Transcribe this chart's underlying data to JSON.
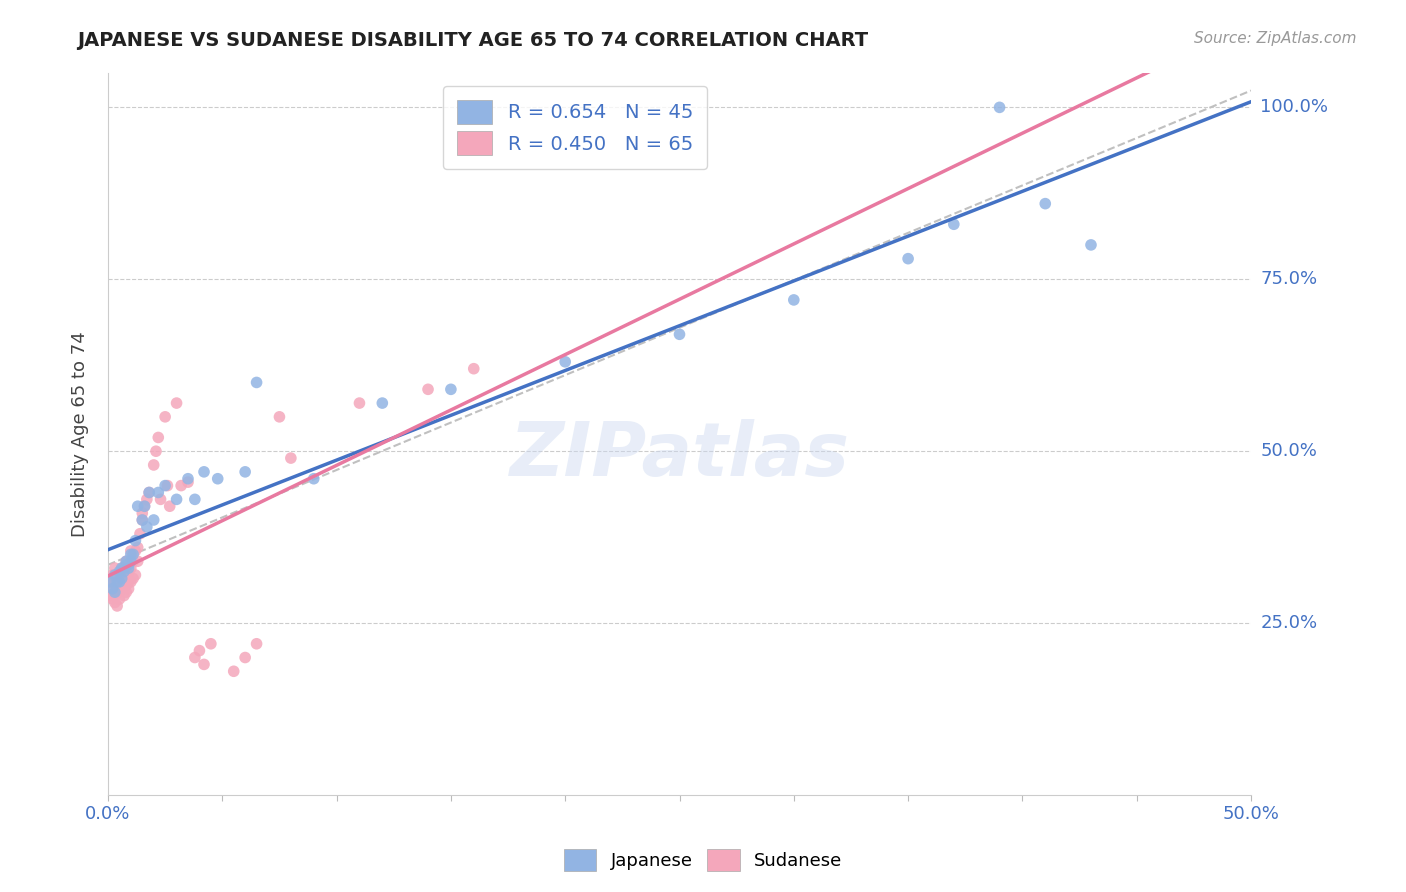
{
  "title": "JAPANESE VS SUDANESE DISABILITY AGE 65 TO 74 CORRELATION CHART",
  "source_text": "Source: ZipAtlas.com",
  "ylabel": "Disability Age 65 to 74",
  "xlim": [
    0.0,
    0.5
  ],
  "ylim": [
    0.0,
    1.05
  ],
  "xticks": [
    0.0,
    0.05,
    0.1,
    0.15,
    0.2,
    0.25,
    0.3,
    0.35,
    0.4,
    0.45,
    0.5
  ],
  "xticklabels": [
    "0.0%",
    "",
    "",
    "",
    "",
    "",
    "",
    "",
    "",
    "",
    "50.0%"
  ],
  "ytick_positions": [
    0.25,
    0.5,
    0.75,
    1.0
  ],
  "yticklabels": [
    "25.0%",
    "50.0%",
    "75.0%",
    "100.0%"
  ],
  "japanese_color": "#92b4e3",
  "sudanese_color": "#f4a7bb",
  "japanese_line_color": "#4472c4",
  "sudanese_line_color": "#e879a0",
  "regression_line_color": "#c0c0c0",
  "watermark": "ZIPatlas",
  "japanese_x": [
    0.001,
    0.002,
    0.003,
    0.003,
    0.004,
    0.005,
    0.005,
    0.006,
    0.006,
    0.007,
    0.007,
    0.008,
    0.008,
    0.009,
    0.009,
    0.01,
    0.01,
    0.011,
    0.012,
    0.013,
    0.015,
    0.016,
    0.017,
    0.018,
    0.02,
    0.022,
    0.025,
    0.03,
    0.035,
    0.038,
    0.042,
    0.048,
    0.06,
    0.065,
    0.09,
    0.12,
    0.15,
    0.2,
    0.25,
    0.3,
    0.35,
    0.37,
    0.39,
    0.41,
    0.43
  ],
  "japanese_y": [
    0.31,
    0.3,
    0.295,
    0.32,
    0.31,
    0.325,
    0.31,
    0.33,
    0.315,
    0.33,
    0.325,
    0.335,
    0.34,
    0.335,
    0.33,
    0.34,
    0.35,
    0.35,
    0.37,
    0.42,
    0.4,
    0.42,
    0.39,
    0.44,
    0.4,
    0.44,
    0.45,
    0.43,
    0.46,
    0.43,
    0.47,
    0.46,
    0.47,
    0.6,
    0.46,
    0.57,
    0.59,
    0.63,
    0.67,
    0.72,
    0.78,
    0.83,
    1.0,
    0.86,
    0.8
  ],
  "sudanese_x": [
    0.0,
    0.001,
    0.001,
    0.002,
    0.002,
    0.003,
    0.003,
    0.003,
    0.004,
    0.004,
    0.004,
    0.005,
    0.005,
    0.005,
    0.006,
    0.006,
    0.006,
    0.006,
    0.007,
    0.007,
    0.007,
    0.008,
    0.008,
    0.008,
    0.008,
    0.009,
    0.009,
    0.009,
    0.01,
    0.01,
    0.01,
    0.011,
    0.011,
    0.012,
    0.012,
    0.013,
    0.013,
    0.014,
    0.015,
    0.015,
    0.016,
    0.017,
    0.018,
    0.02,
    0.021,
    0.022,
    0.023,
    0.025,
    0.026,
    0.027,
    0.03,
    0.032,
    0.035,
    0.038,
    0.04,
    0.042,
    0.045,
    0.055,
    0.06,
    0.065,
    0.075,
    0.08,
    0.11,
    0.14,
    0.16
  ],
  "sudanese_y": [
    0.3,
    0.29,
    0.31,
    0.285,
    0.32,
    0.28,
    0.31,
    0.33,
    0.275,
    0.3,
    0.315,
    0.285,
    0.295,
    0.315,
    0.3,
    0.305,
    0.315,
    0.33,
    0.29,
    0.305,
    0.32,
    0.295,
    0.305,
    0.325,
    0.34,
    0.3,
    0.31,
    0.32,
    0.31,
    0.33,
    0.355,
    0.315,
    0.34,
    0.32,
    0.355,
    0.34,
    0.36,
    0.38,
    0.4,
    0.41,
    0.42,
    0.43,
    0.44,
    0.48,
    0.5,
    0.52,
    0.43,
    0.55,
    0.45,
    0.42,
    0.57,
    0.45,
    0.455,
    0.2,
    0.21,
    0.19,
    0.22,
    0.18,
    0.2,
    0.22,
    0.55,
    0.49,
    0.57,
    0.59,
    0.62
  ],
  "legend_japanese_label": "R = 0.654   N = 45",
  "legend_sudanese_label": "R = 0.450   N = 65"
}
